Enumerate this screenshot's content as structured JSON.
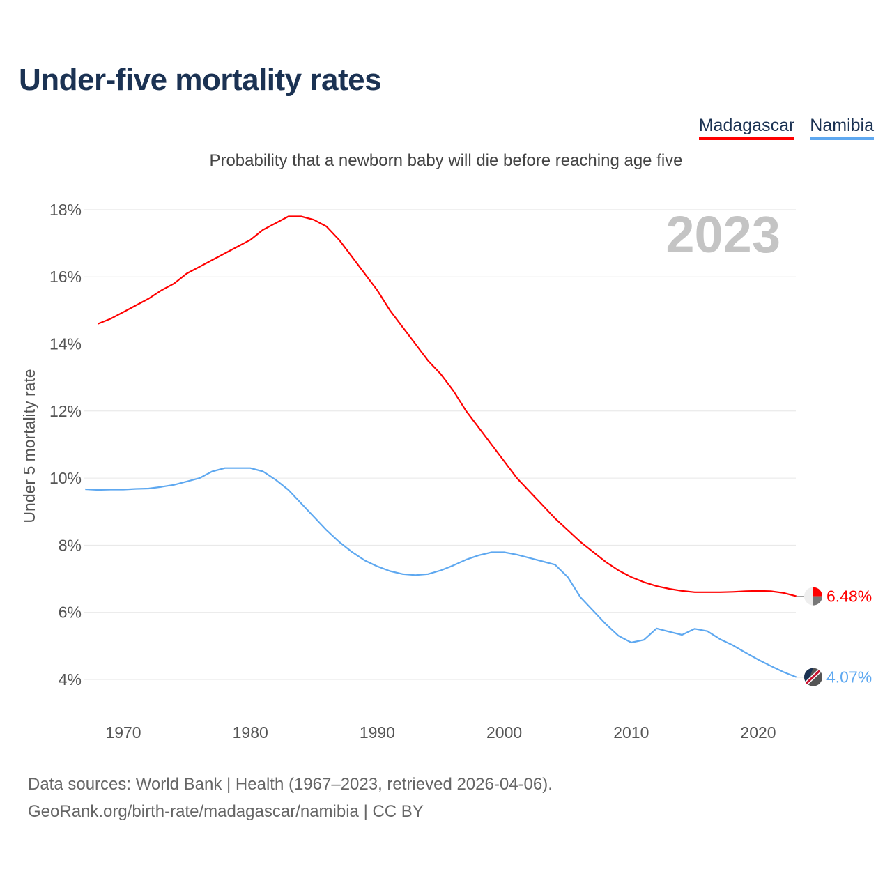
{
  "title": "Under-five mortality rates",
  "subtitle": "Probability that a newborn baby will die before reaching age five",
  "footer": {
    "line1": "Data sources: World Bank | Health (1967–2023, retrieved 2026-04-06).",
    "line2": "GeoRank.org/birth-rate/madagascar/namibia | CC BY"
  },
  "chart_data": {
    "type": "line",
    "title": "Under-five mortality rates",
    "subtitle": "Probability that a newborn baby will die before reaching age five",
    "ylabel": "Under 5 mortality rate",
    "xlabel": "",
    "year_label": "2023",
    "xlim": [
      1967,
      2023
    ],
    "ylim": [
      3.2,
      18.5
    ],
    "xticks": [
      1970,
      1980,
      1990,
      2000,
      2010,
      2020
    ],
    "yticks": [
      4,
      6,
      8,
      10,
      12,
      14,
      16,
      18
    ],
    "ytick_labels": [
      "4%",
      "6%",
      "8%",
      "10%",
      "12%",
      "14%",
      "16%",
      "18%"
    ],
    "grid": true,
    "legend_position": "top-right",
    "series": [
      {
        "name": "Madagascar",
        "color": "#ff0000",
        "end_label": "6.48%",
        "x_start": 1968,
        "values": [
          14.6,
          14.75,
          14.95,
          15.15,
          15.35,
          15.6,
          15.8,
          16.1,
          16.3,
          16.5,
          16.7,
          16.9,
          17.1,
          17.4,
          17.6,
          17.8,
          17.8,
          17.7,
          17.5,
          17.1,
          16.6,
          16.1,
          15.6,
          15.0,
          14.5,
          14.0,
          13.5,
          13.1,
          12.6,
          12.0,
          11.5,
          11.0,
          10.5,
          10.0,
          9.6,
          9.2,
          8.8,
          8.45,
          8.1,
          7.8,
          7.5,
          7.25,
          7.05,
          6.9,
          6.78,
          6.7,
          6.64,
          6.6,
          6.6,
          6.6,
          6.61,
          6.63,
          6.64,
          6.63,
          6.58,
          6.48
        ]
      },
      {
        "name": "Namibia",
        "color": "#5ea8f0",
        "end_label": "4.07%",
        "x_start": 1967,
        "values": [
          9.67,
          9.65,
          9.66,
          9.66,
          9.68,
          9.69,
          9.74,
          9.8,
          9.9,
          10.0,
          10.2,
          10.3,
          10.3,
          10.3,
          10.2,
          9.95,
          9.65,
          9.25,
          8.85,
          8.45,
          8.1,
          7.8,
          7.55,
          7.37,
          7.23,
          7.14,
          7.11,
          7.14,
          7.25,
          7.4,
          7.57,
          7.7,
          7.79,
          7.79,
          7.72,
          7.62,
          7.52,
          7.42,
          7.05,
          6.45,
          6.05,
          5.65,
          5.3,
          5.1,
          5.18,
          5.52,
          5.42,
          5.33,
          5.51,
          5.44,
          5.2,
          5.02,
          4.8,
          4.59,
          4.4,
          4.22,
          4.07
        ]
      }
    ]
  }
}
